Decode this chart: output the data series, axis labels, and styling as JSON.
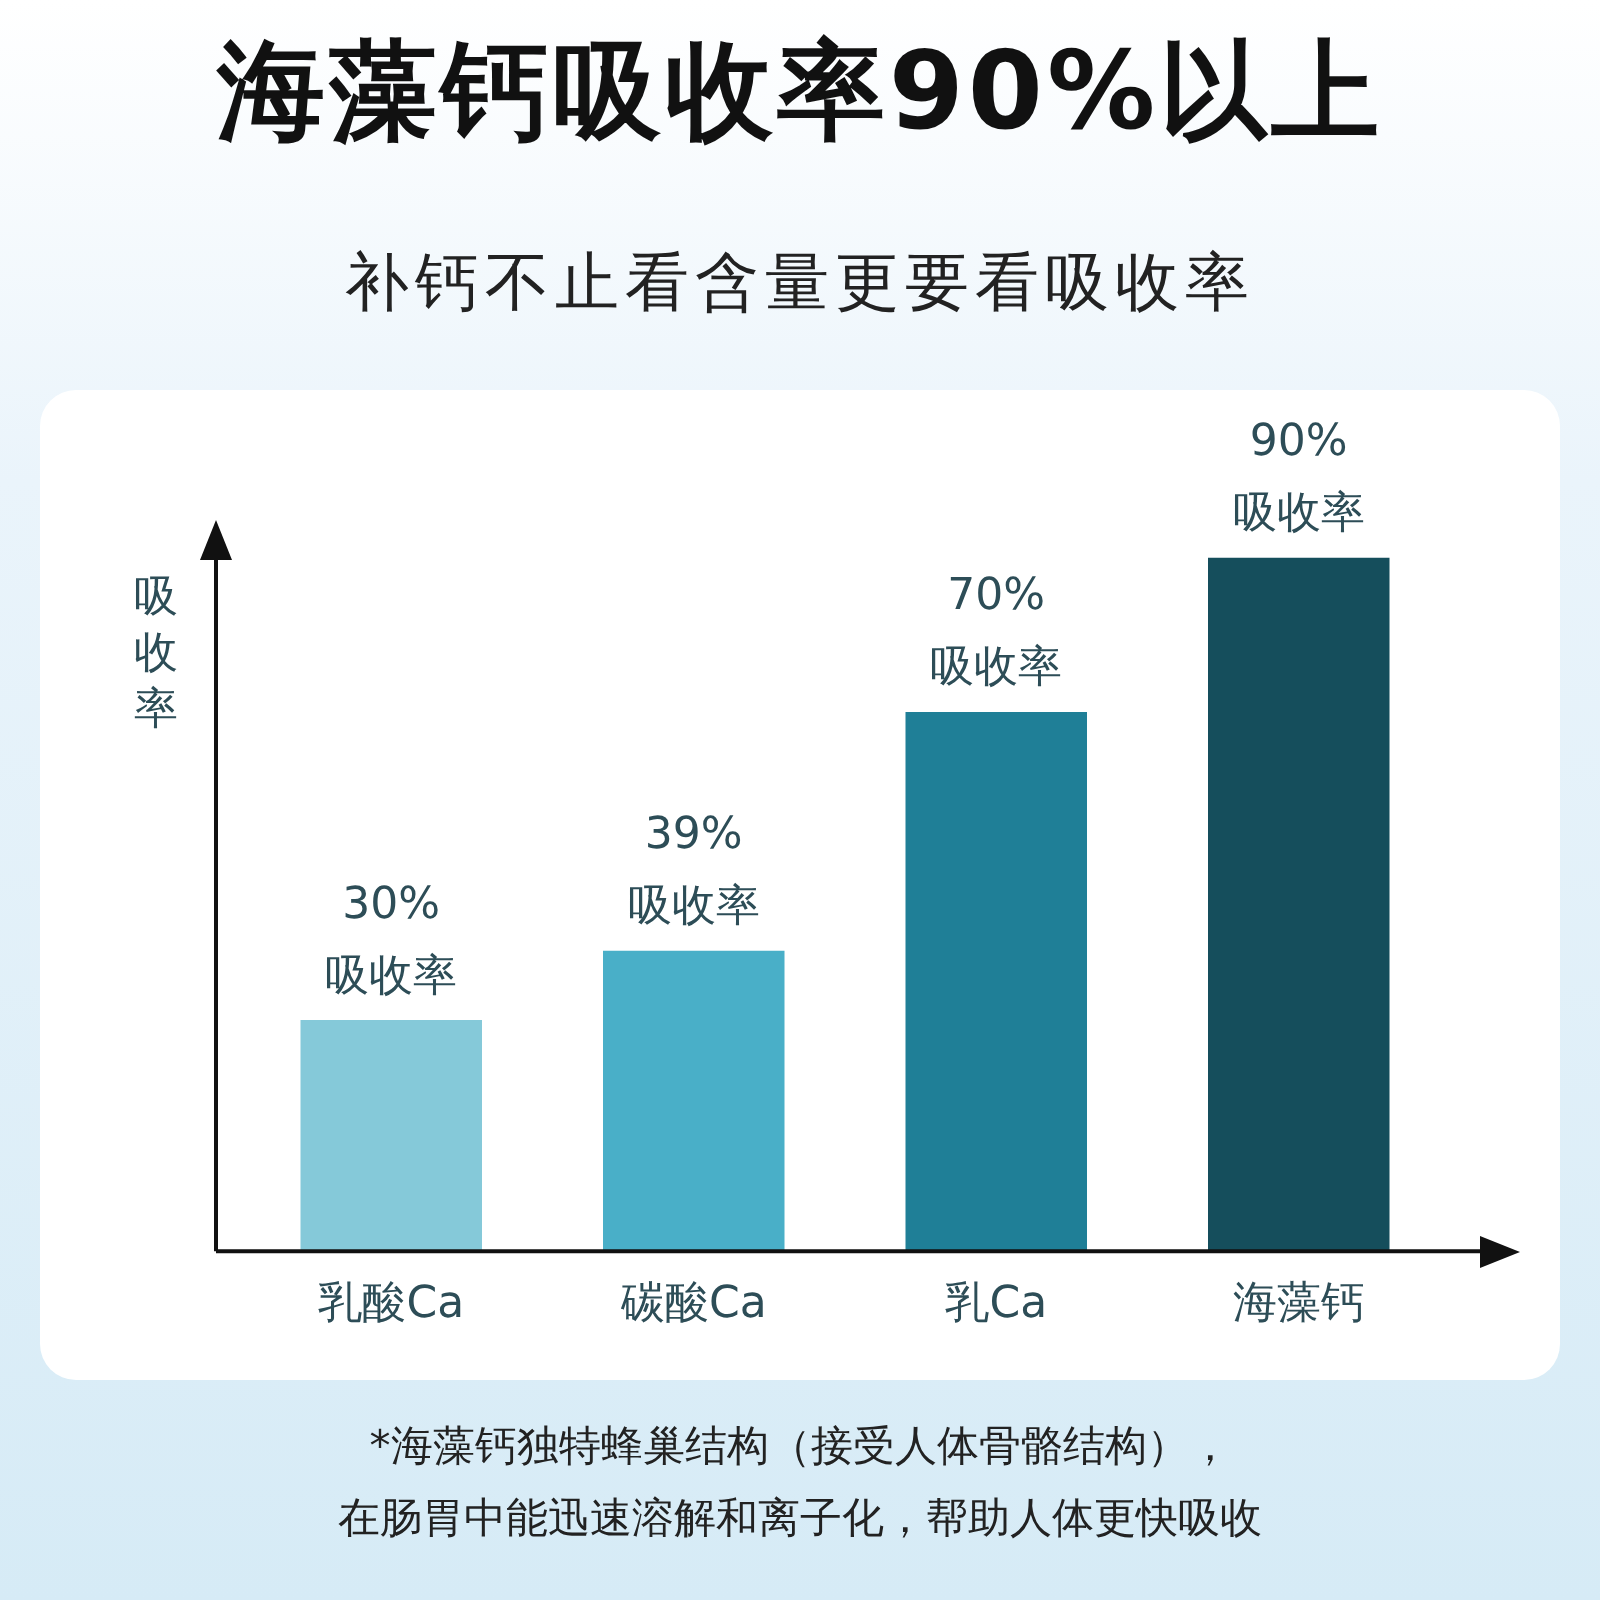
{
  "chart_data": {
    "type": "bar",
    "title": "海藻钙吸收率90%以上",
    "subtitle": "补钙不止看含量更要看吸收率",
    "ylabel": "吸收率",
    "categories": [
      "乳酸Ca",
      "碳酸Ca",
      "乳Ca",
      "海藻钙"
    ],
    "values": [
      30,
      39,
      70,
      90
    ],
    "colors": [
      "#85c9d9",
      "#49afc8",
      "#1f7f97",
      "#154e5c"
    ],
    "value_labels": [
      "30%\n吸收率",
      "39%\n吸收率",
      "70%\n吸收率",
      "90%\n吸收率"
    ],
    "legend": false,
    "grid": false,
    "annotations": [
      "*海藻钙独特蜂巢结构（接受人体骨骼结构），",
      "在肠胃中能迅速溶解和离子化，帮助人体更快吸收"
    ]
  }
}
